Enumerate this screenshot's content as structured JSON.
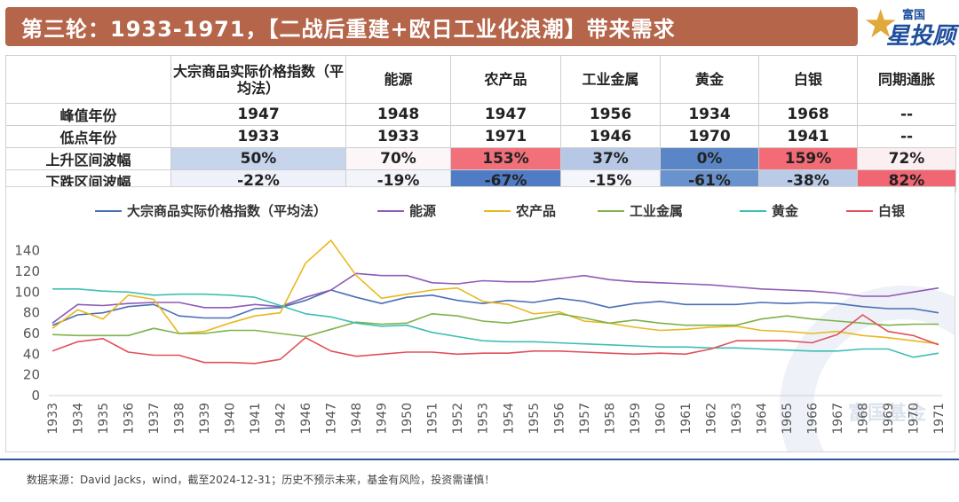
{
  "header": {
    "title": "第三轮：1933-1971，【二战后重建+欧日工业化浪潮】带来需求"
  },
  "logo": {
    "top": "富国",
    "main": "星投顾",
    "watermark": "富国基金"
  },
  "table": {
    "columns": [
      "",
      "大宗商品实际价格指数（平均法）",
      "能源",
      "农产品",
      "工业金属",
      "黄金",
      "白银",
      "同期通胀"
    ],
    "rows": [
      {
        "label": "峰值年份",
        "cells": [
          "1947",
          "1948",
          "1947",
          "1956",
          "1934",
          "1968",
          "--"
        ],
        "colors": [
          "",
          "",
          "",
          "",
          "",
          "",
          ""
        ]
      },
      {
        "label": "低点年份",
        "cells": [
          "1933",
          "1933",
          "1971",
          "1946",
          "1970",
          "1941",
          "--"
        ],
        "colors": [
          "",
          "",
          "",
          "",
          "",
          "",
          ""
        ]
      },
      {
        "label": "上升区间波幅",
        "cells": [
          "50%",
          "70%",
          "153%",
          "37%",
          "0%",
          "159%",
          "72%"
        ],
        "colors": [
          "#c6d4ec",
          "#fcf6f8",
          "#f1707a",
          "#b7c8e7",
          "#5a86c8",
          "#f26b75",
          "#fbeff2"
        ]
      },
      {
        "label": "下跌区间波幅",
        "cells": [
          "-22%",
          "-19%",
          "-67%",
          "-15%",
          "-61%",
          "-38%",
          "82%"
        ],
        "colors": [
          "#eef1f9",
          "#f3f5fb",
          "#4f7cc4",
          "#f5f6fb",
          "#6a92cc",
          "#b9cbe7",
          "#f06672"
        ]
      }
    ]
  },
  "chart_data": {
    "type": "line",
    "categories": [
      "1933",
      "1934",
      "1935",
      "1936",
      "1937",
      "1938",
      "1939",
      "1940",
      "1941",
      "1942",
      "1946",
      "1947",
      "1948",
      "1949",
      "1950",
      "1951",
      "1952",
      "1953",
      "1954",
      "1955",
      "1956",
      "1957",
      "1958",
      "1959",
      "1960",
      "1961",
      "1962",
      "1963",
      "1964",
      "1965",
      "1966",
      "1967",
      "1968",
      "1969",
      "1970",
      "1971"
    ],
    "ylim": [
      0,
      150
    ],
    "yticks": [
      0,
      20,
      40,
      60,
      80,
      100,
      120,
      140
    ],
    "legend_position": "top",
    "grid": false,
    "series": [
      {
        "name": "大宗商品实际价格指数（平均法）",
        "color": "#4a6fb5",
        "values": [
          68,
          78,
          80,
          86,
          88,
          77,
          75,
          75,
          84,
          85,
          92,
          102,
          95,
          89,
          95,
          97,
          92,
          89,
          92,
          90,
          94,
          91,
          85,
          89,
          91,
          88,
          88,
          88,
          90,
          89,
          90,
          89,
          86,
          84,
          84,
          80
        ]
      },
      {
        "name": "能源",
        "color": "#8e5bb5",
        "values": [
          70,
          88,
          87,
          89,
          90,
          90,
          85,
          85,
          88,
          86,
          95,
          102,
          118,
          116,
          116,
          109,
          108,
          111,
          110,
          110,
          113,
          116,
          112,
          110,
          109,
          108,
          107,
          105,
          103,
          102,
          101,
          99,
          96,
          96,
          100,
          104
        ]
      },
      {
        "name": "农产品",
        "color": "#e8b820",
        "values": [
          65,
          83,
          74,
          97,
          93,
          60,
          62,
          70,
          77,
          80,
          128,
          150,
          116,
          94,
          98,
          102,
          104,
          91,
          88,
          79,
          81,
          72,
          70,
          66,
          63,
          64,
          66,
          67,
          63,
          62,
          60,
          62,
          58,
          56,
          53,
          50
        ]
      },
      {
        "name": "工业金属",
        "color": "#7fb24a",
        "values": [
          59,
          58,
          58,
          58,
          65,
          60,
          60,
          63,
          63,
          60,
          57,
          64,
          71,
          69,
          70,
          79,
          77,
          72,
          70,
          74,
          79,
          75,
          70,
          73,
          70,
          68,
          68,
          68,
          74,
          77,
          74,
          72,
          70,
          68,
          69,
          69
        ]
      },
      {
        "name": "黄金",
        "color": "#3ebfb4",
        "values": [
          103,
          103,
          101,
          100,
          97,
          98,
          98,
          97,
          95,
          87,
          79,
          76,
          70,
          67,
          68,
          61,
          57,
          53,
          52,
          52,
          51,
          50,
          49,
          48,
          47,
          47,
          46,
          46,
          45,
          44,
          43,
          43,
          45,
          45,
          37,
          41
        ]
      },
      {
        "name": "白银",
        "color": "#e0505a",
        "values": [
          43,
          52,
          55,
          42,
          39,
          39,
          32,
          32,
          31,
          35,
          56,
          43,
          38,
          40,
          42,
          42,
          40,
          41,
          41,
          43,
          43,
          42,
          41,
          40,
          41,
          40,
          45,
          53,
          53,
          53,
          51,
          59,
          78,
          62,
          58,
          49
        ]
      }
    ]
  },
  "footer": {
    "source": "数据来源：David Jacks，wind，截至2024-12-31；历史不预示未来，基金有风险，投资需谨慎！"
  }
}
